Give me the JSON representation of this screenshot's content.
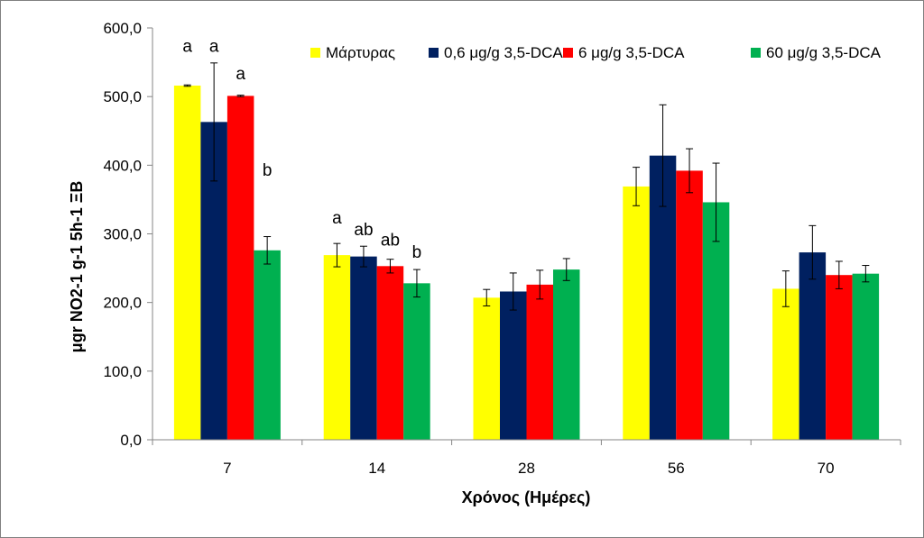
{
  "chart_data": {
    "type": "bar",
    "title": "",
    "xlabel": "Χρόνος (Ημέρες)",
    "ylabel": "μgr NO2-1 g-1 5h-1 ΞΒ",
    "ylim": [
      0,
      600
    ],
    "yticks": [
      0,
      100,
      200,
      300,
      400,
      500,
      600
    ],
    "ytick_labels": [
      "0,0",
      "100,0",
      "200,0",
      "300,0",
      "400,0",
      "500,0",
      "600,0"
    ],
    "categories": [
      "7",
      "14",
      "28",
      "56",
      "70"
    ],
    "legend_position": "top-right",
    "series": [
      {
        "name": "Μάρτυρας",
        "color": "#FFFF00",
        "values": [
          516,
          269,
          207,
          369,
          220
        ],
        "errors": [
          1,
          17,
          12,
          28,
          26
        ]
      },
      {
        "name": "0,6 μg/g 3,5-DCA",
        "color": "#002060",
        "values": [
          463,
          267,
          216,
          414,
          273
        ],
        "errors": [
          86,
          15,
          27,
          74,
          39
        ]
      },
      {
        "name": "6 μg/g 3,5-DCA",
        "color": "#FF0000",
        "values": [
          501,
          253,
          226,
          392,
          240
        ],
        "errors": [
          1,
          10,
          21,
          32,
          20
        ]
      },
      {
        "name": "60 μg/g 3,5-DCA",
        "color": "#00B050",
        "values": [
          276,
          228,
          248,
          346,
          242
        ],
        "errors": [
          20,
          20,
          16,
          57,
          12
        ]
      }
    ],
    "annotations": [
      {
        "category": "7",
        "series": 0,
        "text": "a",
        "value": 565
      },
      {
        "category": "7",
        "series": 1,
        "text": "a",
        "value": 565
      },
      {
        "category": "7",
        "series": 2,
        "text": "a",
        "value": 525
      },
      {
        "category": "7",
        "series": 3,
        "text": "b",
        "value": 385
      },
      {
        "category": "14",
        "series": 0,
        "text": "a",
        "value": 315
      },
      {
        "category": "14",
        "series": 1,
        "text": "ab",
        "value": 298
      },
      {
        "category": "14",
        "series": 2,
        "text": "ab",
        "value": 283
      },
      {
        "category": "14",
        "series": 3,
        "text": "b",
        "value": 265
      }
    ]
  }
}
